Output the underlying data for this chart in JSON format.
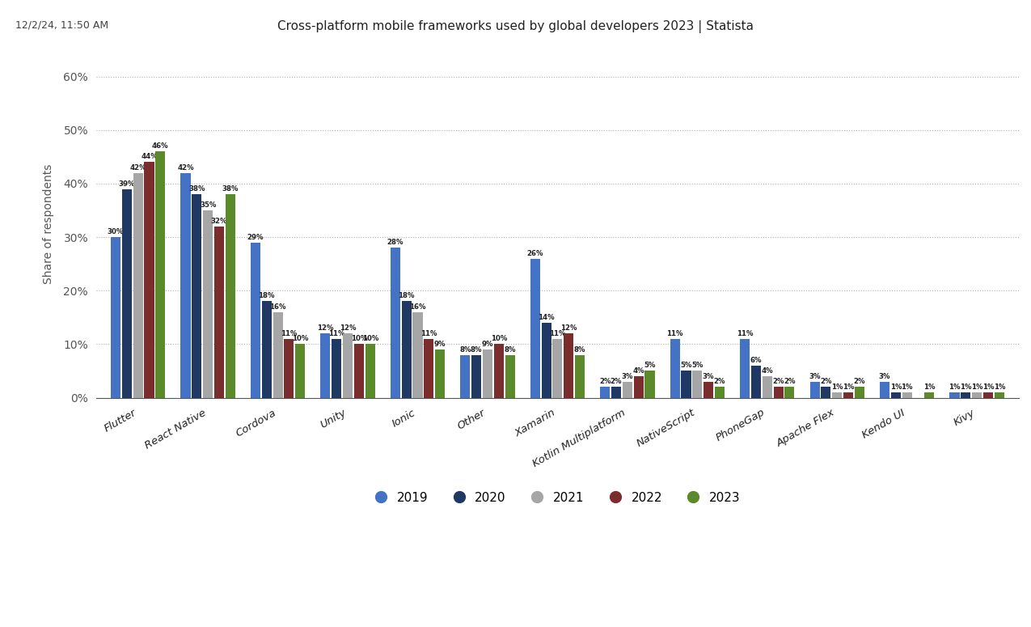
{
  "title": "Cross-platform mobile frameworks used by global developers 2023 | Statista",
  "timestamp": "12/2/24, 11:50 AM",
  "ylabel": "Share of respondents",
  "categories": [
    "Flutter",
    "React Native",
    "Cordova",
    "Unity",
    "Ionic",
    "Other",
    "Xamarin",
    "Kotlin Multiplatform",
    "NativeScript",
    "PhoneGap",
    "Apache Flex",
    "Kendo UI",
    "Kivy"
  ],
  "years": [
    "2019",
    "2020",
    "2021",
    "2022",
    "2023"
  ],
  "colors": [
    "#4472c4",
    "#1f3864",
    "#a6a6a6",
    "#7b2c2c",
    "#5b8a2a"
  ],
  "data": {
    "Flutter": [
      30,
      39,
      42,
      44,
      46
    ],
    "React Native": [
      42,
      38,
      35,
      32,
      38
    ],
    "Cordova": [
      29,
      18,
      16,
      11,
      10
    ],
    "Unity": [
      12,
      11,
      12,
      10,
      10
    ],
    "Ionic": [
      28,
      18,
      16,
      11,
      9
    ],
    "Other": [
      8,
      8,
      9,
      10,
      8
    ],
    "Xamarin": [
      26,
      14,
      11,
      12,
      8
    ],
    "Kotlin Multiplatform": [
      2,
      2,
      3,
      4,
      5
    ],
    "NativeScript": [
      11,
      5,
      5,
      3,
      2
    ],
    "PhoneGap": [
      11,
      6,
      4,
      2,
      2
    ],
    "Apache Flex": [
      3,
      2,
      1,
      1,
      2
    ],
    "Kendo UI": [
      3,
      1,
      1,
      0,
      1
    ],
    "Kivy": [
      1,
      1,
      1,
      1,
      1
    ]
  },
  "ylim": [
    0,
    65
  ],
  "yticks": [
    0,
    10,
    20,
    30,
    40,
    50,
    60
  ],
  "ytick_labels": [
    "0%",
    "10%",
    "20%",
    "30%",
    "40%",
    "50%",
    "60%"
  ],
  "background_color": "#ffffff",
  "grid_color": "#b0b0b0"
}
